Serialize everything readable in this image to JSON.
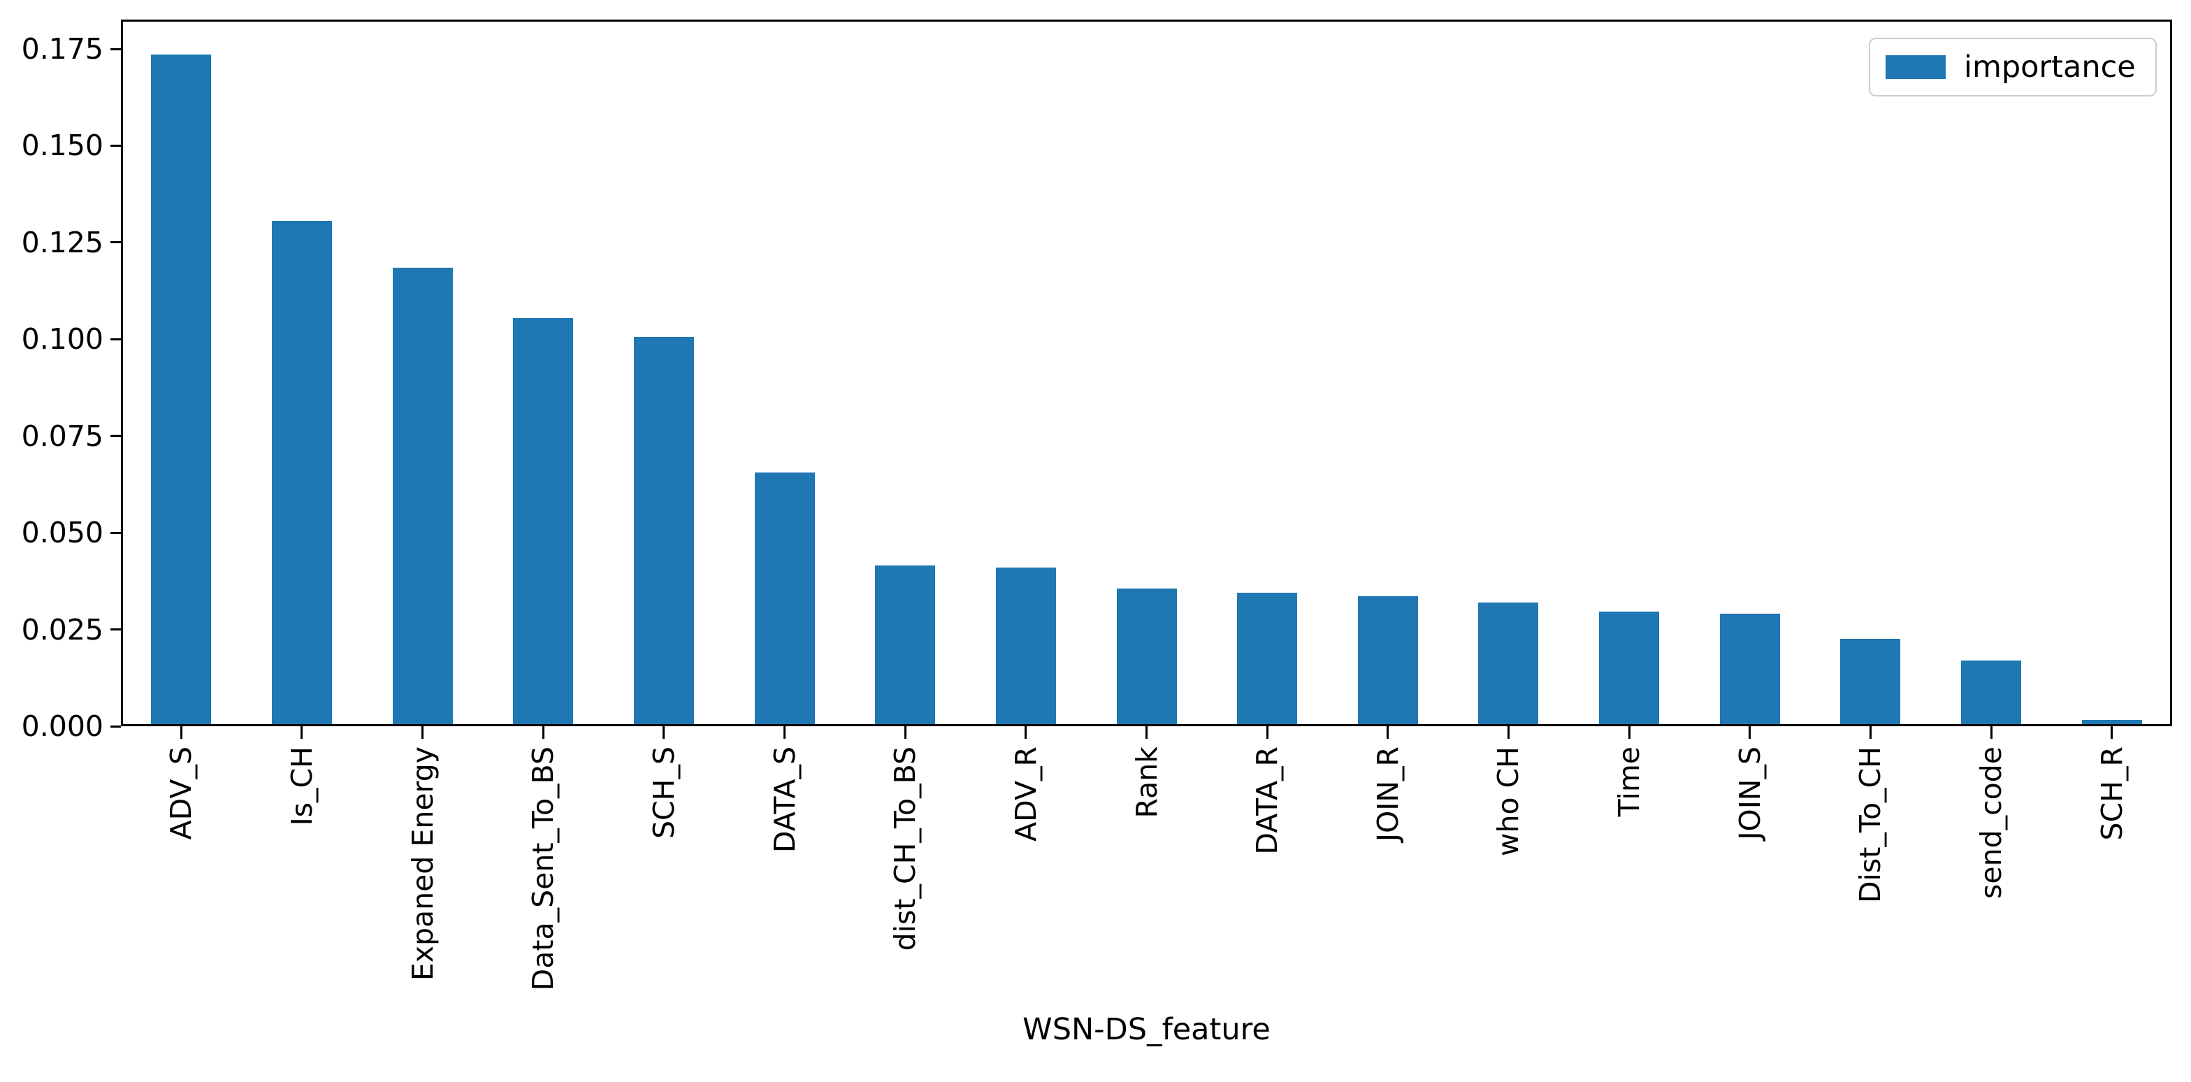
{
  "figure": {
    "background": "#ffffff",
    "frame_color": "#000000"
  },
  "chart_data": {
    "type": "bar",
    "title": "",
    "xlabel": "WSN-DS_feature",
    "ylabel": "",
    "categories": [
      "ADV_S",
      "Is_CH",
      "Expaned Energy",
      "Data_Sent_To_BS",
      "SCH_S",
      "DATA_S",
      "dist_CH_To_BS",
      "ADV_R",
      "Rank",
      "DATA_R",
      "JOIN_R",
      "who CH",
      "Time",
      "JOIN_S",
      "Dist_To_CH",
      "send_code",
      "SCH_R"
    ],
    "series": [
      {
        "name": "importance",
        "color": "#1f77b4",
        "values": [
          0.173,
          0.13,
          0.118,
          0.105,
          0.1,
          0.065,
          0.041,
          0.0405,
          0.035,
          0.034,
          0.033,
          0.0315,
          0.029,
          0.0285,
          0.022,
          0.0165,
          0.001
        ]
      }
    ],
    "ylim": [
      0,
      0.1826
    ],
    "yticks": [
      "0.000",
      "0.025",
      "0.050",
      "0.075",
      "0.100",
      "0.125",
      "0.150",
      "0.175"
    ],
    "x_tick_rotation": 90,
    "grid": false,
    "legend": {
      "label": "importance",
      "position": "upper right"
    }
  }
}
